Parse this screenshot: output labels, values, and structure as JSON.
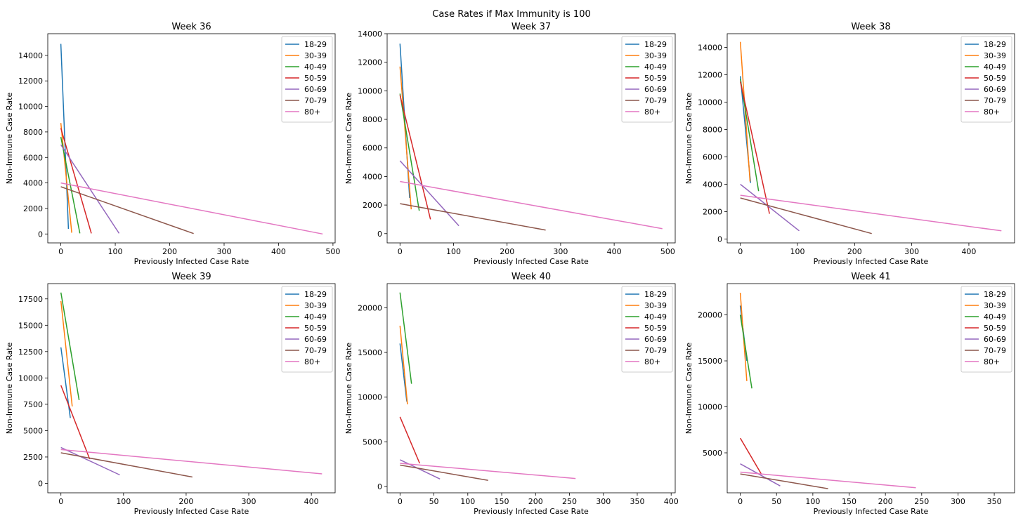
{
  "figure": {
    "suptitle": "Case Rates if Max Immunity is 100"
  },
  "colors": {
    "18-29": "#1f77b4",
    "30-39": "#ff7f0e",
    "40-49": "#2ca02c",
    "50-59": "#d62728",
    "60-69": "#9467bd",
    "70-79": "#8c564b",
    "80+": "#e377c2"
  },
  "chart_data": [
    {
      "type": "line",
      "title": "Week 36",
      "xlabel": "Previously Infected Case Rate",
      "ylabel": "Non-Immune Case Rate",
      "xlim": [
        -24,
        504
      ],
      "ylim": [
        -700,
        15700
      ],
      "xticks": [
        0,
        100,
        200,
        300,
        400,
        500
      ],
      "yticks": [
        0,
        2000,
        4000,
        6000,
        8000,
        10000,
        12000,
        14000
      ],
      "legend": "upper right",
      "series": [
        {
          "name": "18-29",
          "x": [
            0,
            14
          ],
          "y": [
            14900,
            400
          ]
        },
        {
          "name": "30-39",
          "x": [
            0,
            20
          ],
          "y": [
            8700,
            100
          ]
        },
        {
          "name": "40-49",
          "x": [
            0,
            35
          ],
          "y": [
            7600,
            50
          ]
        },
        {
          "name": "50-59",
          "x": [
            0,
            56
          ],
          "y": [
            8300,
            50
          ]
        },
        {
          "name": "60-69",
          "x": [
            0,
            107
          ],
          "y": [
            7000,
            50
          ]
        },
        {
          "name": "70-79",
          "x": [
            0,
            244
          ],
          "y": [
            3700,
            30
          ]
        },
        {
          "name": "80+",
          "x": [
            0,
            481
          ],
          "y": [
            4000,
            0
          ]
        }
      ]
    },
    {
      "type": "line",
      "title": "Week 37",
      "xlabel": "Previously Infected Case Rate",
      "ylabel": "Non-Immune Case Rate",
      "xlim": [
        -24,
        514
      ],
      "ylim": [
        -650,
        14000
      ],
      "xticks": [
        0,
        100,
        200,
        300,
        400,
        500
      ],
      "yticks": [
        0,
        2000,
        4000,
        6000,
        8000,
        10000,
        12000,
        14000
      ],
      "legend": "upper right",
      "series": [
        {
          "name": "18-29",
          "x": [
            0,
            18
          ],
          "y": [
            13300,
            2500
          ]
        },
        {
          "name": "30-39",
          "x": [
            0,
            21
          ],
          "y": [
            11700,
            1700
          ]
        },
        {
          "name": "40-49",
          "x": [
            0,
            36
          ],
          "y": [
            9800,
            1600
          ]
        },
        {
          "name": "50-59",
          "x": [
            0,
            57
          ],
          "y": [
            9700,
            1000
          ]
        },
        {
          "name": "60-69",
          "x": [
            0,
            110
          ],
          "y": [
            5100,
            550
          ]
        },
        {
          "name": "70-79",
          "x": [
            0,
            272
          ],
          "y": [
            2100,
            250
          ]
        },
        {
          "name": "80+",
          "x": [
            0,
            490
          ],
          "y": [
            3650,
            350
          ]
        }
      ]
    },
    {
      "type": "line",
      "title": "Week 38",
      "xlabel": "Previously Infected Case Rate",
      "ylabel": "Non-Immune Case Rate",
      "xlim": [
        -23,
        480
      ],
      "ylim": [
        -280,
        15000
      ],
      "xticks": [
        0,
        100,
        200,
        300,
        400
      ],
      "yticks": [
        0,
        2000,
        4000,
        6000,
        8000,
        10000,
        12000,
        14000
      ],
      "legend": "upper right",
      "series": [
        {
          "name": "18-29",
          "x": [
            0,
            18
          ],
          "y": [
            11900,
            4100
          ]
        },
        {
          "name": "30-39",
          "x": [
            0,
            17
          ],
          "y": [
            14400,
            4200
          ]
        },
        {
          "name": "40-49",
          "x": [
            0,
            32
          ],
          "y": [
            11700,
            3500
          ]
        },
        {
          "name": "50-59",
          "x": [
            0,
            51
          ],
          "y": [
            11500,
            1850
          ]
        },
        {
          "name": "60-69",
          "x": [
            0,
            103
          ],
          "y": [
            4000,
            600
          ]
        },
        {
          "name": "70-79",
          "x": [
            0,
            230
          ],
          "y": [
            3000,
            400
          ]
        },
        {
          "name": "80+",
          "x": [
            0,
            457
          ],
          "y": [
            3200,
            600
          ]
        }
      ]
    },
    {
      "type": "line",
      "title": "Week 39",
      "xlabel": "Previously Infected Case Rate",
      "ylabel": "Non-Immune Case Rate",
      "xlim": [
        -21,
        438
      ],
      "ylim": [
        -900,
        18950
      ],
      "xticks": [
        0,
        100,
        200,
        300,
        400
      ],
      "yticks": [
        0,
        2500,
        5000,
        7500,
        10000,
        12500,
        15000,
        17500
      ],
      "legend": "upper right",
      "series": [
        {
          "name": "18-29",
          "x": [
            0,
            15
          ],
          "y": [
            12900,
            6200
          ]
        },
        {
          "name": "30-39",
          "x": [
            0,
            18
          ],
          "y": [
            17300,
            7300
          ]
        },
        {
          "name": "40-49",
          "x": [
            0,
            29
          ],
          "y": [
            18100,
            7900
          ]
        },
        {
          "name": "50-59",
          "x": [
            0,
            46
          ],
          "y": [
            9300,
            2300
          ]
        },
        {
          "name": "60-69",
          "x": [
            0,
            94
          ],
          "y": [
            3400,
            800
          ]
        },
        {
          "name": "70-79",
          "x": [
            0,
            210
          ],
          "y": [
            2900,
            600
          ]
        },
        {
          "name": "80+",
          "x": [
            0,
            417
          ],
          "y": [
            3200,
            900
          ]
        }
      ]
    },
    {
      "type": "line",
      "title": "Week 40",
      "xlabel": "Previously Infected Case Rate",
      "ylabel": "Non-Immune Case Rate",
      "xlim": [
        -19,
        406
      ],
      "ylim": [
        -700,
        22700
      ],
      "xticks": [
        0,
        50,
        100,
        150,
        200,
        250,
        300,
        350,
        400
      ],
      "yticks": [
        0,
        5000,
        10000,
        15000,
        20000
      ],
      "legend": "upper right",
      "series": [
        {
          "name": "18-29",
          "x": [
            0,
            10
          ],
          "y": [
            16000,
            9500
          ]
        },
        {
          "name": "30-39",
          "x": [
            0,
            11
          ],
          "y": [
            18000,
            9200
          ]
        },
        {
          "name": "40-49",
          "x": [
            0,
            17
          ],
          "y": [
            21700,
            11500
          ]
        },
        {
          "name": "50-59",
          "x": [
            0,
            29
          ],
          "y": [
            7800,
            2600
          ]
        },
        {
          "name": "60-69",
          "x": [
            0,
            59
          ],
          "y": [
            3000,
            850
          ]
        },
        {
          "name": "70-79",
          "x": [
            0,
            130
          ],
          "y": [
            2400,
            700
          ]
        },
        {
          "name": "80+",
          "x": [
            0,
            259
          ],
          "y": [
            2600,
            900
          ]
        }
      ]
    },
    {
      "type": "line",
      "title": "Week 41",
      "xlabel": "Previously Infected Case Rate",
      "ylabel": "Non-Immune Case Rate",
      "xlim": [
        -18,
        378
      ],
      "ylim": [
        650,
        23400
      ],
      "xticks": [
        0,
        50,
        100,
        150,
        200,
        250,
        300,
        350
      ],
      "yticks": [
        5000,
        10000,
        15000,
        20000
      ],
      "legend": "upper right",
      "series": [
        {
          "name": "18-29",
          "x": [
            0,
            9
          ],
          "y": [
            21000,
            15000
          ]
        },
        {
          "name": "30-39",
          "x": [
            0,
            9
          ],
          "y": [
            22400,
            12800
          ]
        },
        {
          "name": "40-49",
          "x": [
            0,
            16
          ],
          "y": [
            20000,
            12000
          ]
        },
        {
          "name": "50-59",
          "x": [
            0,
            29
          ],
          "y": [
            6600,
            2700
          ]
        },
        {
          "name": "60-69",
          "x": [
            0,
            55
          ],
          "y": [
            3800,
            1400
          ]
        },
        {
          "name": "70-79",
          "x": [
            0,
            121
          ],
          "y": [
            2700,
            1100
          ]
        },
        {
          "name": "80+",
          "x": [
            0,
            242
          ],
          "y": [
            2900,
            1200
          ]
        }
      ]
    }
  ]
}
